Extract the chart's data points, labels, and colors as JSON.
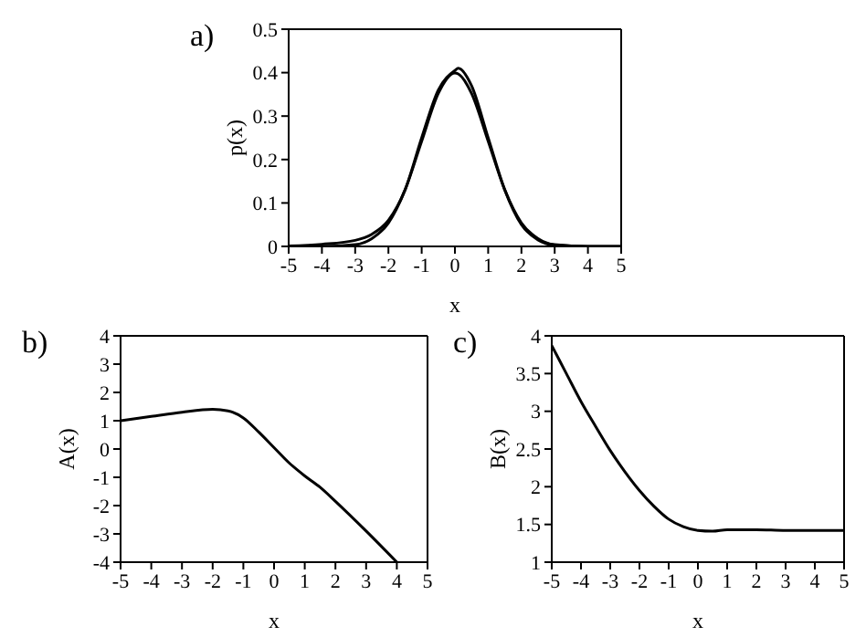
{
  "chart_data": [
    {
      "type": "line",
      "title": "a)",
      "xlabel": "x",
      "ylabel": "p(x)",
      "xlim": [
        -5,
        5
      ],
      "xticks": [
        -5,
        -4,
        -3,
        -2,
        -1,
        0,
        1,
        2,
        3,
        4,
        5
      ],
      "ylim": [
        0,
        0.5
      ],
      "yticks": [
        0,
        0.1,
        0.2,
        0.3,
        0.4,
        0.5
      ],
      "x": [
        -5,
        -4,
        -3,
        -2.5,
        -2,
        -1.5,
        -1,
        -0.5,
        0,
        0.1,
        0.5,
        1,
        1.5,
        2,
        2.5,
        3,
        4,
        5
      ],
      "series": [
        {
          "color": "#000000",
          "values": [
            0,
            0,
            0.004,
            0.018,
            0.054,
            0.13,
            0.242,
            0.352,
            0.399,
            0.397,
            0.352,
            0.242,
            0.13,
            0.054,
            0.018,
            0.004,
            0,
            0
          ]
        },
        {
          "color": "#000000",
          "values": [
            0.001,
            0.005,
            0.014,
            0.028,
            0.06,
            0.13,
            0.25,
            0.36,
            0.405,
            0.41,
            0.37,
            0.25,
            0.13,
            0.05,
            0.015,
            0.003,
            0,
            0
          ]
        }
      ]
    },
    {
      "type": "line",
      "title": "b)",
      "xlabel": "x",
      "ylabel": "A(x)",
      "xlim": [
        -5,
        5
      ],
      "xticks": [
        -5,
        -4,
        -3,
        -2,
        -1,
        0,
        1,
        2,
        3,
        4,
        5
      ],
      "ylim": [
        -4,
        4
      ],
      "yticks": [
        -4,
        -3,
        -2,
        -1,
        0,
        1,
        2,
        3,
        4
      ],
      "x": [
        -5,
        -4,
        -3,
        -2,
        -1.5,
        -1,
        -0.5,
        0,
        0.5,
        1,
        1.5,
        2,
        3,
        4
      ],
      "series": [
        {
          "color": "#000000",
          "values": [
            1,
            1.15,
            1.3,
            1.4,
            1.35,
            1.1,
            0.6,
            0.05,
            -0.5,
            -0.95,
            -1.35,
            -1.85,
            -2.9,
            -4
          ]
        }
      ]
    },
    {
      "type": "line",
      "title": "c)",
      "xlabel": "x",
      "ylabel": "B(x)",
      "xlim": [
        -5,
        5
      ],
      "xticks": [
        -5,
        -4,
        -3,
        -2,
        -1,
        0,
        1,
        2,
        3,
        4,
        5
      ],
      "ylim": [
        1,
        4
      ],
      "yticks": [
        1,
        1.5,
        2,
        2.5,
        3,
        3.5,
        4
      ],
      "x": [
        -5,
        -4.5,
        -4,
        -3.5,
        -3,
        -2.5,
        -2,
        -1.5,
        -1,
        -0.5,
        0,
        0.5,
        1,
        2,
        3,
        5
      ],
      "series": [
        {
          "color": "#000000",
          "values": [
            3.87,
            3.5,
            3.13,
            2.8,
            2.48,
            2.2,
            1.95,
            1.74,
            1.57,
            1.47,
            1.42,
            1.41,
            1.43,
            1.43,
            1.42,
            1.42
          ]
        }
      ]
    }
  ]
}
